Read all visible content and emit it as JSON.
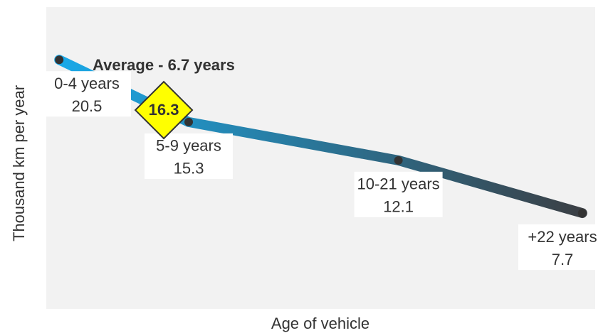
{
  "chart_data": {
    "type": "line",
    "xlabel": "Age of vehicle",
    "ylabel": "Thousand km per year",
    "x": [
      2,
      7,
      15.1,
      22.2
    ],
    "point_labels": [
      "0-4 years",
      "5-9 years",
      "10-21 years",
      "+22 years"
    ],
    "xlim": [
      1.5,
      22.7
    ],
    "ylim": [
      -0.3,
      24.9
    ],
    "series": [
      {
        "color": [
          "#1aa9e8",
          "#3b3f44"
        ],
        "values": [
          20.5,
          15.3,
          12.1,
          7.7
        ]
      }
    ],
    "annotation": {
      "text": "Average - 6.7 years",
      "value": 16.3,
      "color": "#ffff00"
    }
  }
}
